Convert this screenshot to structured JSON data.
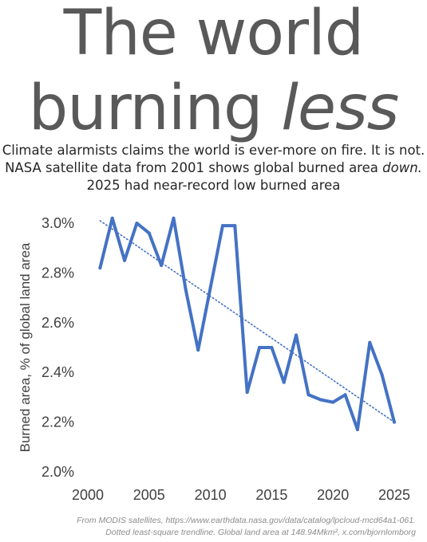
{
  "title": {
    "line1": "The world",
    "line2_prefix": "burning ",
    "line2_emphasis": "less"
  },
  "subtitle": {
    "line1": "Climate alarmists claims the world is ever-more on fire. It is not.",
    "line2_prefix": "NASA satellite data from 2001 shows global burned area ",
    "line2_emphasis": "down.",
    "line3": "2025 had near-record low burned area"
  },
  "chart_data": {
    "type": "line",
    "ylabel": "Burned area, % of global land area",
    "xlim": [
      2000,
      2025
    ],
    "ylim": [
      2.0,
      3.0
    ],
    "x_ticks": [
      2000,
      2005,
      2010,
      2015,
      2020,
      2025
    ],
    "y_ticks": [
      2.0,
      2.2,
      2.4,
      2.6,
      2.8,
      3.0
    ],
    "y_tick_labels": [
      "2.0%",
      "2.2%",
      "2.4%",
      "2.6%",
      "2.8%",
      "3.0%"
    ],
    "grid": false,
    "series": [
      {
        "x": [
          2001,
          2002,
          2003,
          2004,
          2005,
          2006,
          2007,
          2008,
          2009,
          2010,
          2011,
          2012,
          2013,
          2014,
          2015,
          2016,
          2017,
          2018,
          2019,
          2020,
          2021,
          2022,
          2023,
          2024,
          2025
        ],
        "values": [
          2.82,
          3.02,
          2.85,
          3.0,
          2.96,
          2.83,
          3.02,
          2.73,
          2.49,
          2.74,
          2.99,
          2.99,
          2.32,
          2.5,
          2.5,
          2.36,
          2.55,
          2.31,
          2.29,
          2.28,
          2.31,
          2.17,
          2.52,
          2.39,
          2.2
        ],
        "color": "#4472c4"
      }
    ],
    "trendline": {
      "style": "dotted",
      "x": [
        2001,
        2025
      ],
      "values": [
        3.01,
        2.2
      ],
      "color": "#4472c4"
    }
  },
  "footnote": {
    "line1": "From MODIS satellites, https://www.earthdata.nasa.gov/data/catalog/lpcloud-mcd64a1-061.",
    "line2": "Dotted least-square trendline. Global land area at 148.94Mkm², x.com/bjornlomborg"
  }
}
